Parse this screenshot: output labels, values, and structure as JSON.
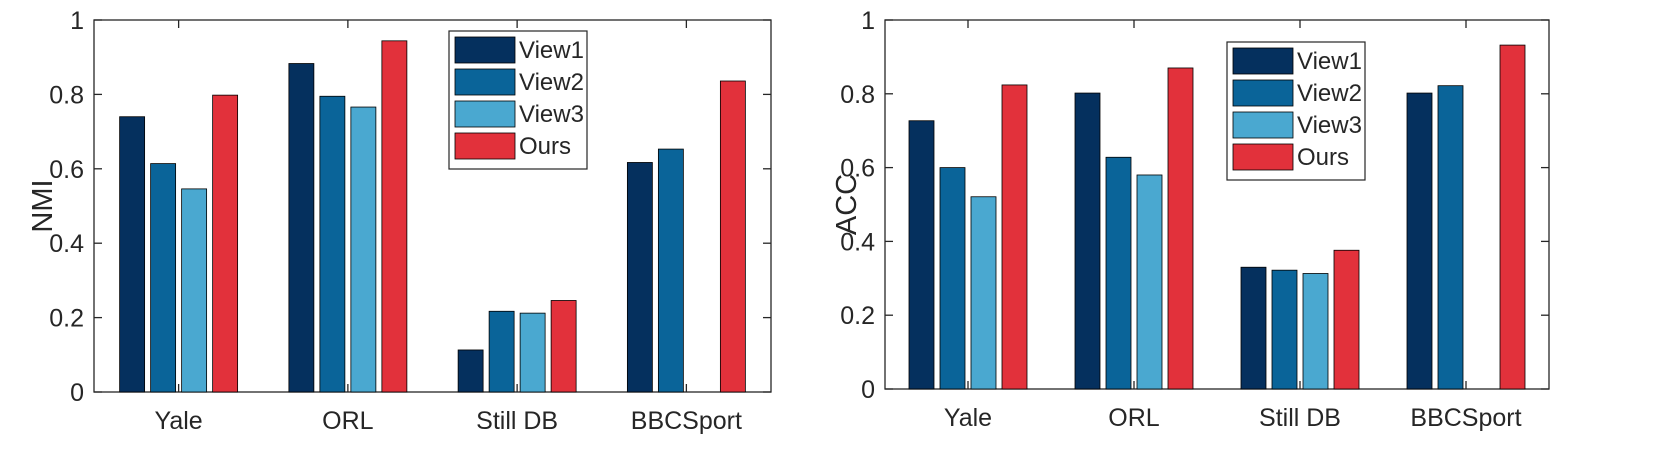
{
  "chart_data": [
    {
      "type": "bar",
      "title": "",
      "xlabel": "",
      "ylabel": "NMI",
      "ylim": [
        0,
        1
      ],
      "yticks": [
        "0",
        "0.2",
        "0.4",
        "0.6",
        "0.8",
        "1"
      ],
      "categories": [
        "Yale",
        "ORL",
        "Still DB",
        "BBCSport"
      ],
      "legend_position": "top-center",
      "grid": false,
      "series": [
        {
          "name": "View1",
          "color": "#05305e",
          "values": [
            0.74,
            0.883,
            0.113,
            0.617
          ]
        },
        {
          "name": "View2",
          "color": "#0a6499",
          "values": [
            0.614,
            0.795,
            0.217,
            0.653
          ]
        },
        {
          "name": "View3",
          "color": "#4aa8d0",
          "values": [
            0.546,
            0.766,
            0.212,
            null
          ]
        },
        {
          "name": "Ours",
          "color": "#e2313b",
          "values": [
            0.798,
            0.944,
            0.246,
            0.836
          ]
        }
      ]
    },
    {
      "type": "bar",
      "title": "",
      "xlabel": "",
      "ylabel": "ACC",
      "ylim": [
        0,
        1
      ],
      "yticks": [
        "0",
        "0.2",
        "0.4",
        "0.6",
        "0.8",
        "1"
      ],
      "categories": [
        "Yale",
        "ORL",
        "Still DB",
        "BBCSport"
      ],
      "legend_position": "top-center",
      "grid": false,
      "series": [
        {
          "name": "View1",
          "color": "#05305e",
          "values": [
            0.727,
            0.802,
            0.33,
            0.802
          ]
        },
        {
          "name": "View2",
          "color": "#0a6499",
          "values": [
            0.6,
            0.628,
            0.322,
            0.822
          ]
        },
        {
          "name": "View3",
          "color": "#4aa8d0",
          "values": [
            0.521,
            0.58,
            0.313,
            null
          ]
        },
        {
          "name": "Ours",
          "color": "#e2313b",
          "values": [
            0.824,
            0.87,
            0.376,
            0.932
          ]
        }
      ]
    }
  ]
}
